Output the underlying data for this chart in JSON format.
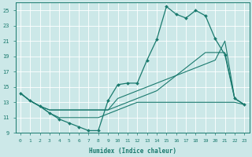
{
  "xlabel": "Humidex (Indice chaleur)",
  "background_color": "#cce8e8",
  "line_color": "#1a7a6e",
  "grid_color": "#b8d8d8",
  "xlim": [
    -0.5,
    23.5
  ],
  "ylim": [
    9,
    26
  ],
  "yticks": [
    9,
    11,
    13,
    15,
    17,
    19,
    21,
    23,
    25
  ],
  "xticks": [
    0,
    1,
    2,
    3,
    4,
    5,
    6,
    7,
    8,
    9,
    10,
    11,
    12,
    13,
    14,
    15,
    16,
    17,
    18,
    19,
    20,
    21,
    22,
    23
  ],
  "line_spiky_x": [
    0,
    1,
    2,
    3,
    4,
    5,
    6,
    7,
    8,
    9,
    10,
    11,
    12,
    13,
    14,
    15,
    16,
    17,
    18,
    19,
    20,
    21,
    22,
    23
  ],
  "line_spiky_y": [
    14.2,
    13.2,
    12.5,
    11.6,
    10.8,
    10.3,
    9.8,
    9.3,
    9.3,
    13.2,
    15.3,
    15.5,
    15.5,
    18.5,
    21.2,
    25.5,
    24.5,
    24.0,
    25.0,
    24.3,
    21.3,
    19.2,
    13.5,
    12.7
  ],
  "line_upper_x": [
    0,
    1,
    2,
    3,
    4,
    5,
    6,
    7,
    8,
    9,
    10,
    11,
    12,
    13,
    14,
    15,
    16,
    17,
    18,
    19,
    20,
    21,
    22,
    23
  ],
  "line_upper_y": [
    14.2,
    13.2,
    12.5,
    12.0,
    12.0,
    12.0,
    12.0,
    12.0,
    12.0,
    12.0,
    13.5,
    14.0,
    14.5,
    15.0,
    15.5,
    16.0,
    16.5,
    17.0,
    17.5,
    18.0,
    18.5,
    21.0,
    13.5,
    12.7
  ],
  "line_mid_x": [
    0,
    1,
    2,
    3,
    4,
    5,
    6,
    7,
    8,
    9,
    10,
    11,
    12,
    13,
    14,
    15,
    16,
    17,
    18,
    19,
    20,
    21,
    22,
    23
  ],
  "line_mid_y": [
    14.2,
    13.2,
    12.5,
    12.0,
    12.0,
    12.0,
    12.0,
    12.0,
    12.0,
    12.0,
    12.5,
    13.0,
    13.5,
    14.0,
    14.5,
    15.5,
    16.5,
    17.5,
    18.5,
    19.5,
    19.5,
    19.5,
    13.5,
    12.7
  ],
  "line_flat_x": [
    0,
    1,
    2,
    3,
    4,
    5,
    6,
    7,
    8,
    9,
    10,
    11,
    12,
    13,
    14,
    15,
    16,
    17,
    18,
    19,
    20,
    21,
    22,
    23
  ],
  "line_flat_y": [
    14.2,
    13.2,
    12.5,
    11.6,
    11.0,
    11.0,
    11.0,
    11.0,
    11.0,
    11.5,
    12.0,
    12.5,
    13.0,
    13.0,
    13.0,
    13.0,
    13.0,
    13.0,
    13.0,
    13.0,
    13.0,
    13.0,
    13.0,
    12.7
  ]
}
